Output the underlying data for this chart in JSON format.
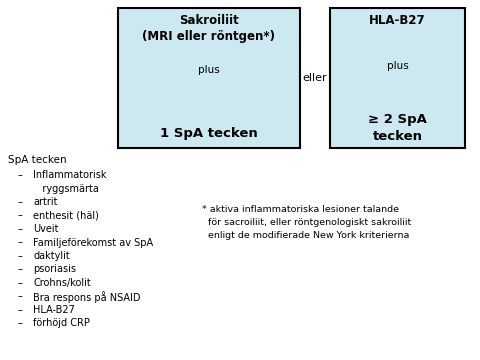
{
  "background_color": "#ffffff",
  "box1_bg": "#cce8f0",
  "box2_bg": "#cce8f0",
  "box_edge_color": "#000000",
  "box1_title": "Sakroiliit\n(MRI eller röntgen*)",
  "box1_plus": "plus",
  "box1_bottom": "1 SpA tecken",
  "box2_title": "HLA-B27",
  "box2_plus": "plus",
  "box2_bottom": "≥ 2 SpA\ntecken",
  "eller_text": "eller",
  "spa_header": "SpA tecken",
  "spa_items": [
    "Inflammatorisk",
    "   ryggsmärta",
    "artrit",
    "enthesit (häl)",
    "Uveit",
    "Familjeförekomst av SpA",
    "daktylit",
    "psoriasis",
    "Crohns/kolit",
    "Bra respons på NSAID",
    "HLA-B27",
    "förhöjd CRP"
  ],
  "spa_dashes": [
    true,
    false,
    true,
    true,
    true,
    true,
    true,
    true,
    true,
    true,
    true,
    true
  ],
  "footnote_line1": "* aktiva inflammatoriska lesioner talande",
  "footnote_line2": "  för sacroiliit, eller röntgenologiskt sakroiliit",
  "footnote_line3": "  enligt de modifierade New York kriterierna"
}
